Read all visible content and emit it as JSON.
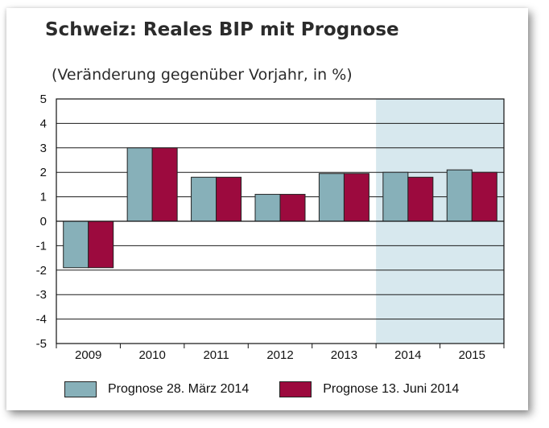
{
  "title": "Schweiz: Reales BIP mit Prognose",
  "subtitle": "(Veränderung gegenüber Vorjahr, in %)",
  "colors": {
    "series1": "#87b0b9",
    "series2": "#9c0a3e",
    "forecast_band": "#d7e8ee"
  },
  "chart_data": {
    "type": "bar",
    "title": "Schweiz: Reales BIP mit Prognose",
    "subtitle": "(Veränderung gegenüber Vorjahr, in %)",
    "categories": [
      "2009",
      "2010",
      "2011",
      "2012",
      "2013",
      "2014",
      "2015"
    ],
    "series": [
      {
        "name": "Prognose 28. März 2014",
        "values": [
          -1.9,
          3.0,
          1.8,
          1.1,
          1.95,
          2.0,
          2.1
        ]
      },
      {
        "name": "Prognose 13. Juni 2014",
        "values": [
          -1.9,
          3.0,
          1.8,
          1.1,
          1.95,
          1.8,
          2.0
        ]
      }
    ],
    "ylim": [
      -5,
      5
    ],
    "yticks": [
      "5",
      "4",
      "3",
      "2",
      "1",
      "0",
      "-1",
      "-2",
      "-3",
      "-4",
      "-5"
    ],
    "grid": true,
    "forecast_shaded": [
      "2014",
      "2015"
    ],
    "legend_position": "bottom"
  }
}
